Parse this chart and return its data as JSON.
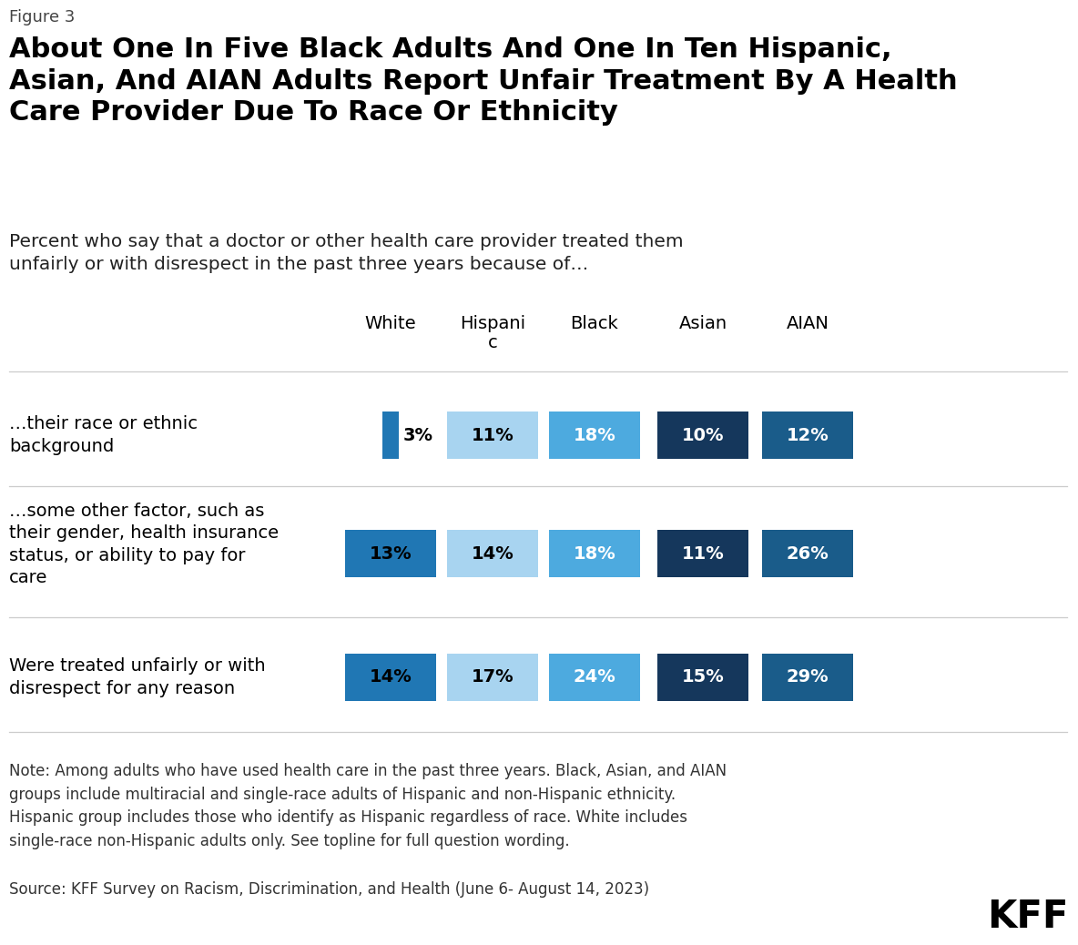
{
  "figure_label": "Figure 3",
  "title": "About One In Five Black Adults And One In Ten Hispanic,\nAsian, And AIAN Adults Report Unfair Treatment By A Health\nCare Provider Due To Race Or Ethnicity",
  "subtitle": "Percent who say that a doctor or other health care provider treated them\nunfairly or with disrespect in the past three years because of…",
  "column_headers": [
    "White",
    "Hispani\nc",
    "Black",
    "Asian",
    "AIAN"
  ],
  "rows": [
    {
      "label": "…their race or ethnic\nbackground",
      "values": [
        3,
        11,
        18,
        10,
        12
      ]
    },
    {
      "label": "…some other factor, such as\ntheir gender, health insurance\nstatus, or ability to pay for\ncare",
      "values": [
        13,
        14,
        18,
        11,
        26
      ]
    },
    {
      "label": "Were treated unfairly or with\ndisrespect for any reason",
      "values": [
        14,
        17,
        24,
        15,
        29
      ]
    }
  ],
  "bar_colors": [
    "#2077B4",
    "#A8D4F0",
    "#4DAADF",
    "#15375C",
    "#1A5C8A"
  ],
  "text_colors": [
    "#000000",
    "#000000",
    "#ffffff",
    "#ffffff",
    "#ffffff"
  ],
  "white_bar_scale": 0.18,
  "note": "Note: Among adults who have used health care in the past three years. Black, Asian, and AIAN\ngroups include multiracial and single-race adults of Hispanic and non-Hispanic ethnicity.\nHispanic group includes those who identify as Hispanic regardless of race. White includes\nsingle-race non-Hispanic adults only. See topline for full question wording.",
  "source": "Source: KFF Survey on Racism, Discrimination, and Health (June 6- August 14, 2023)",
  "background_color": "#ffffff"
}
